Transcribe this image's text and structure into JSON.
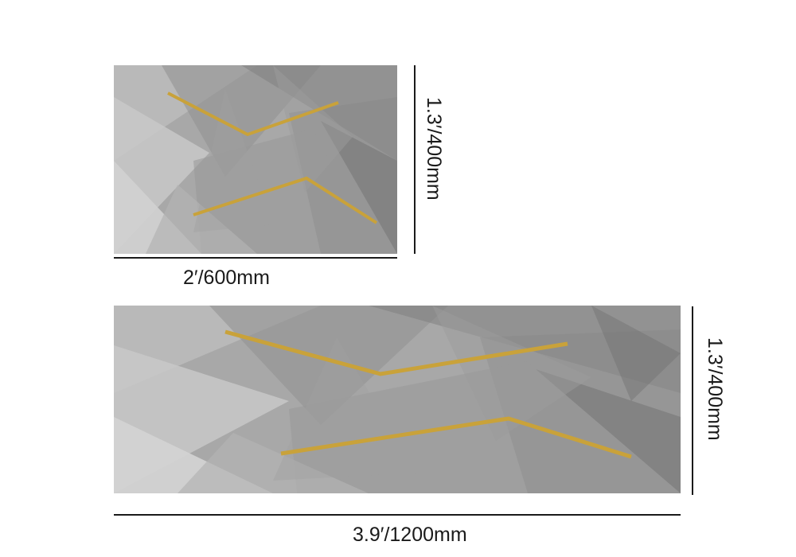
{
  "products": [
    {
      "id": "small",
      "width_label": "2′/600mm",
      "height_label": "1.3′/400mm"
    },
    {
      "id": "large",
      "width_label": "3.9′/1200mm",
      "height_label": "1.3′/400mm"
    }
  ],
  "colors": {
    "background": "#ffffff",
    "rug_base": "#a9a9a9",
    "gold_accent": "#c9a23a",
    "dimension_line": "#1a1a1a"
  }
}
